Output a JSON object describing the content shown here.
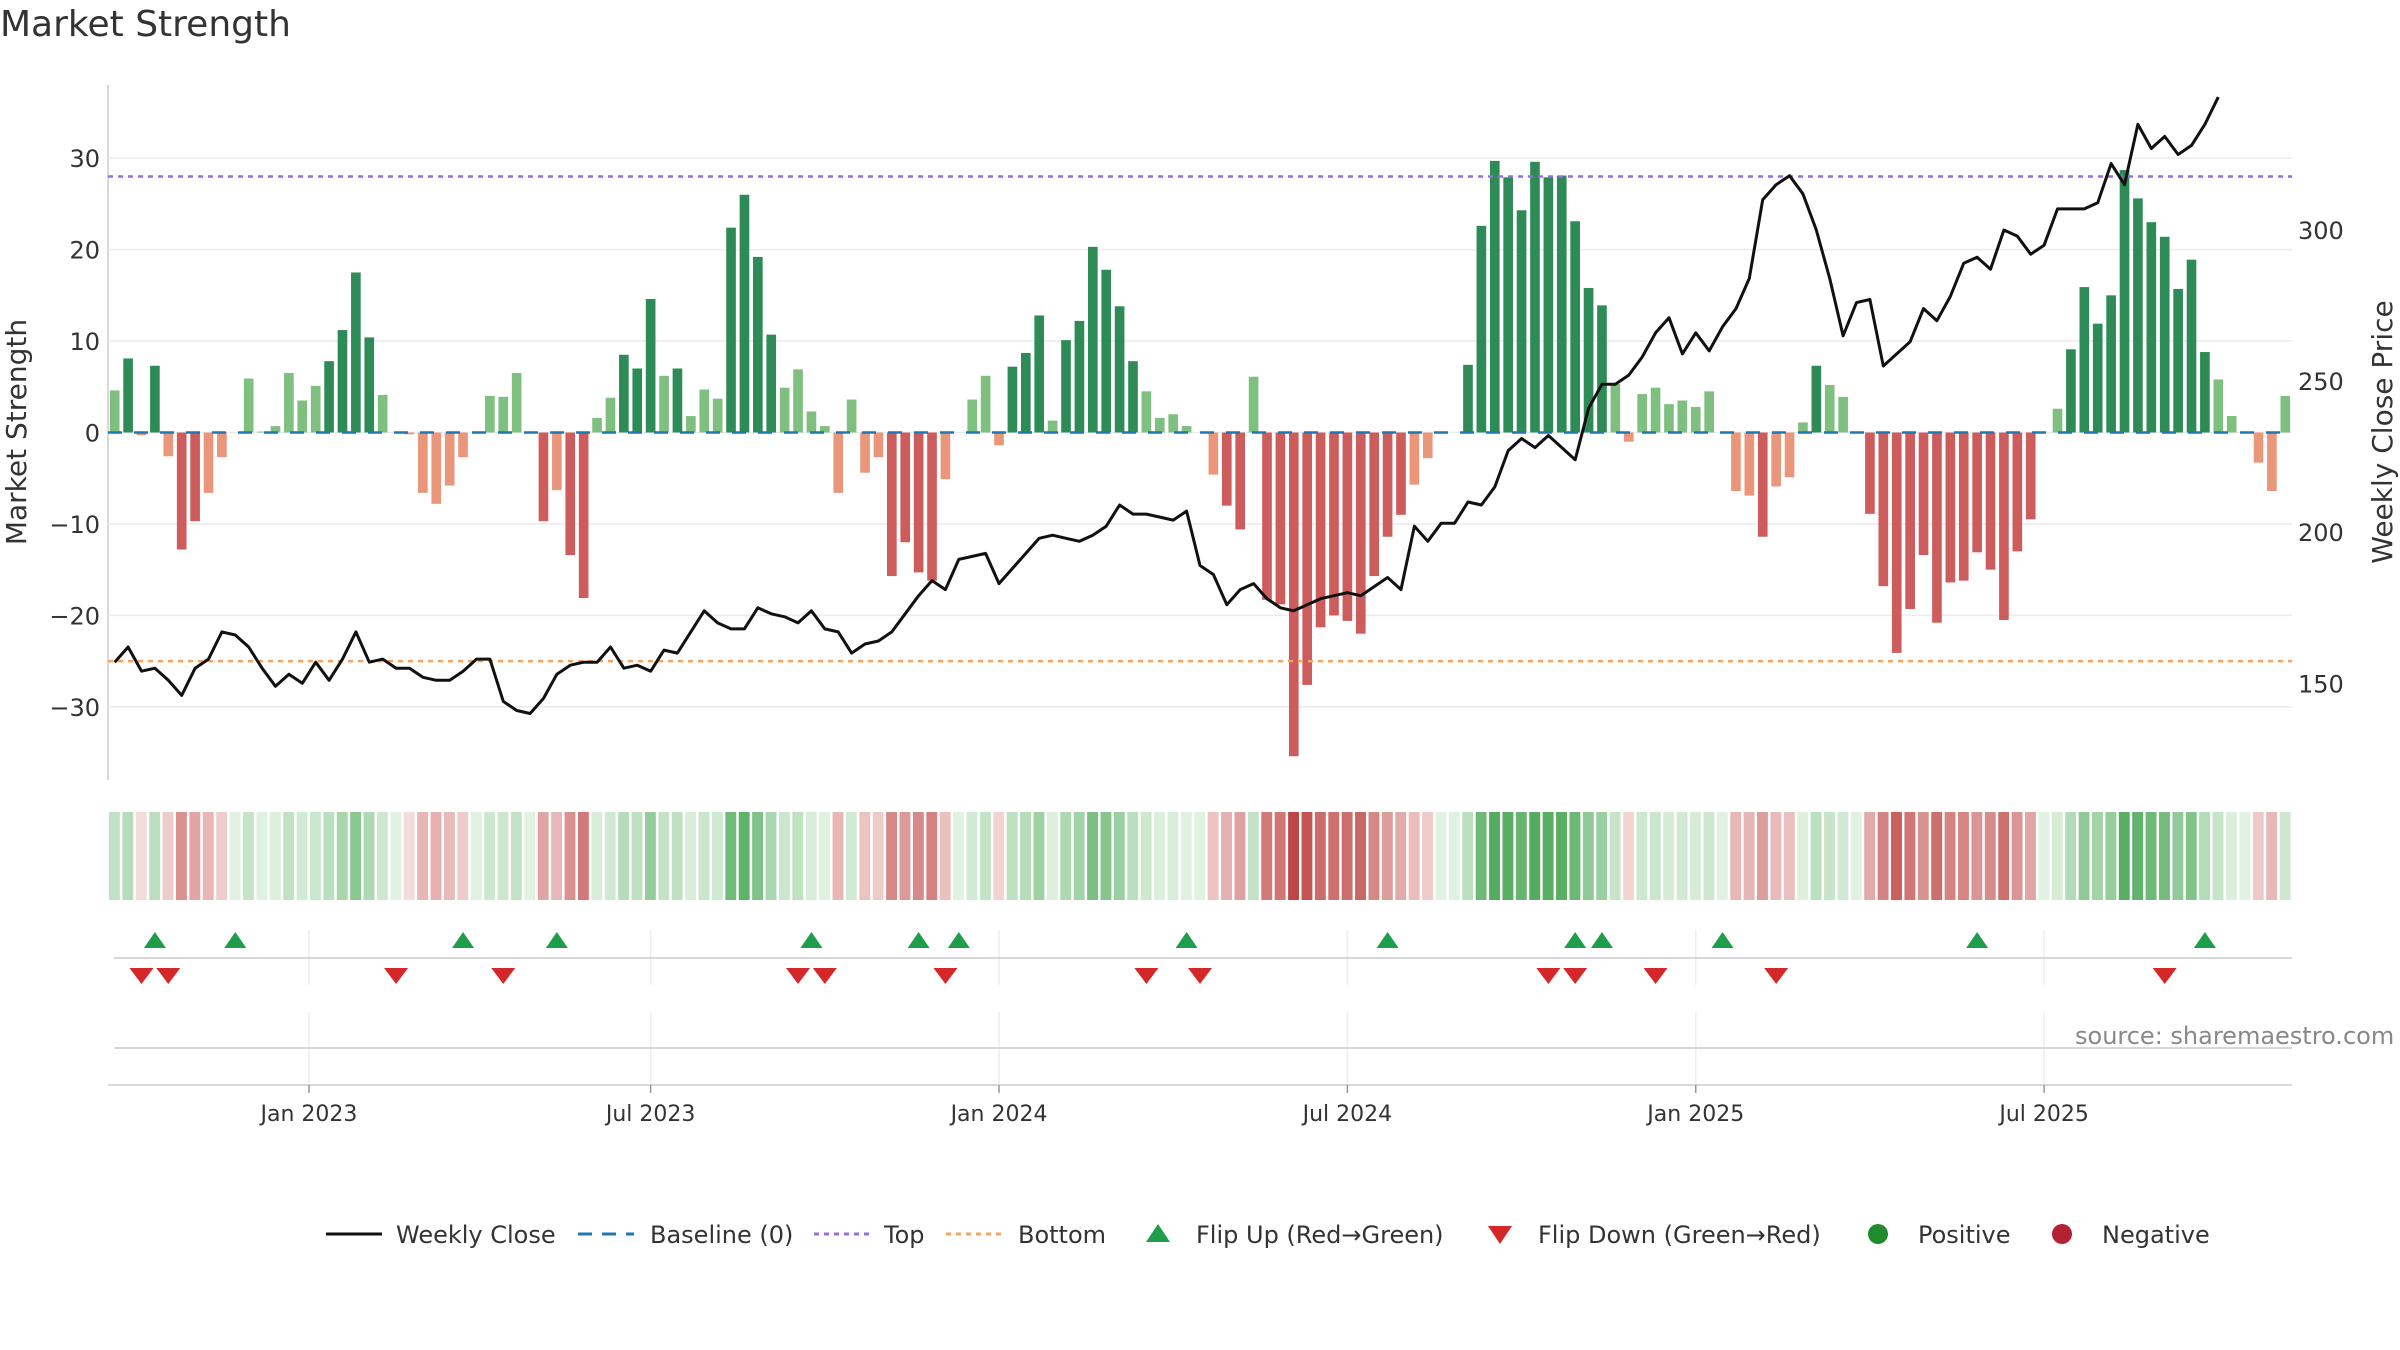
{
  "title": "Market Strength",
  "source": "source: sharemaestro.com",
  "colors": {
    "strong_green": "#2e8b57",
    "light_green": "#7fbf7f",
    "strong_red": "#cd5c5c",
    "light_red": "#e9967a",
    "close_line": "#111111",
    "top_line": "#9370db",
    "bottom_line": "#f4a460",
    "baseline": "#1f77b4",
    "flip_up": "#1e9e4a",
    "flip_down": "#d62728",
    "positive": "#1f8b2c",
    "negative": "#b22234"
  },
  "chart_data": {
    "type": "bar",
    "ylabel": "Market Strength",
    "y2label": "Weekly Close Price",
    "ylim": [
      -38,
      38
    ],
    "y2lim": [
      118,
      348
    ],
    "yticks": [
      30,
      20,
      10,
      0,
      -10,
      -20,
      -30
    ],
    "y2ticks": [
      300,
      250,
      200,
      150
    ],
    "top_level": 28,
    "bottom_level": -25,
    "x_tick_labels": [
      "Jan 2023",
      "Jul 2023",
      "Jan 2024",
      "Jul 2024",
      "Jan 2025",
      "Jul 2025"
    ],
    "x_tick_weeks": [
      14.5,
      40,
      66,
      92,
      118,
      144
    ],
    "strength": [
      4.6,
      8.1,
      -0.3,
      7.3,
      -2.6,
      -12.8,
      -9.7,
      -6.6,
      -2.7,
      0,
      5.9,
      0.1,
      0.7,
      6.5,
      3.5,
      5.1,
      7.8,
      11.2,
      17.5,
      10.4,
      4.1,
      0,
      -0.2,
      -6.6,
      -7.8,
      -5.8,
      -2.7,
      0,
      4.0,
      3.9,
      6.5,
      0,
      -9.7,
      -6.3,
      -13.4,
      -18.1,
      1.6,
      3.8,
      8.5,
      7.0,
      14.6,
      6.2,
      7.0,
      1.8,
      4.7,
      3.7,
      22.4,
      26.0,
      19.2,
      10.7,
      4.9,
      6.9,
      2.3,
      0.7,
      -6.6,
      3.6,
      -4.4,
      -2.7,
      -15.7,
      -12.0,
      -15.3,
      -16.2,
      -5.1,
      0,
      3.6,
      6.2,
      -1.4,
      7.2,
      8.7,
      12.8,
      1.3,
      10.1,
      12.2,
      20.3,
      17.8,
      13.8,
      7.8,
      4.5,
      1.6,
      2.0,
      0.7,
      0,
      -4.6,
      -8.0,
      -10.6,
      6.1,
      -18.3,
      -18.8,
      -35.4,
      -27.6,
      -21.3,
      -20.0,
      -20.6,
      -22.0,
      -15.7,
      -11.4,
      -9.0,
      -5.7,
      -2.8,
      0,
      0,
      7.4,
      22.6,
      29.7,
      27.9,
      24.3,
      29.6,
      27.9,
      28.1,
      23.1,
      15.8,
      13.9,
      5.3,
      -1.0,
      4.2,
      4.9,
      3.1,
      3.5,
      2.8,
      4.5,
      0,
      -6.4,
      -6.9,
      -11.4,
      -5.9,
      -4.9,
      1.1,
      7.3,
      5.2,
      3.9,
      0,
      -8.9,
      -16.8,
      -24.1,
      -19.3,
      -13.4,
      -20.8,
      -16.4,
      -16.2,
      -13.1,
      -15.0,
      -20.5,
      -13.0,
      -9.5,
      0,
      2.6,
      9.1,
      15.9,
      11.9,
      15.0,
      28.7,
      25.6,
      23.0,
      21.4,
      15.7,
      18.9,
      8.8,
      5.8,
      1.8,
      0,
      -3.3,
      -6.4,
      4.0
    ],
    "weekly_close": [
      157,
      162,
      154,
      155,
      151,
      146,
      155,
      158,
      167,
      166,
      162,
      155,
      149,
      153,
      150,
      157,
      151,
      158,
      167,
      157,
      158,
      155,
      155,
      152,
      151,
      151,
      154,
      158,
      158,
      144,
      141,
      140,
      145,
      153,
      156,
      157,
      157,
      162,
      155,
      156,
      154,
      161,
      160,
      167,
      174,
      170,
      168,
      168,
      175,
      173,
      172,
      170,
      174,
      168,
      167,
      160,
      163,
      164,
      167,
      173,
      179,
      184,
      181,
      191,
      192,
      193,
      183,
      188,
      193,
      198,
      199,
      198,
      197,
      199,
      202,
      209,
      206,
      206,
      205,
      204,
      207,
      189,
      186,
      176,
      181,
      183,
      178,
      175,
      174,
      176,
      178,
      179,
      180,
      179,
      182,
      185,
      181,
      202,
      197,
      203,
      203,
      210,
      209,
      215,
      227,
      231,
      228,
      232,
      228,
      224,
      241,
      249,
      249,
      252,
      258,
      266,
      271,
      259,
      266,
      260,
      268,
      274,
      284,
      310,
      315,
      318,
      312,
      300,
      284,
      265,
      276,
      277,
      255,
      259,
      263,
      274,
      270,
      278,
      289,
      291,
      287,
      300,
      298,
      292,
      295,
      307,
      307,
      307,
      309,
      322,
      315,
      335,
      327,
      331,
      325,
      328,
      335,
      344
    ],
    "heat_strip": [
      0.25,
      0.32,
      -0.01,
      0.29,
      -0.12,
      -0.5,
      -0.38,
      -0.26,
      -0.12,
      0.05,
      0.23,
      0.06,
      0.08,
      0.25,
      0.15,
      0.2,
      0.3,
      0.42,
      0.62,
      0.38,
      0.18,
      0.04,
      -0.02,
      -0.26,
      -0.3,
      -0.23,
      -0.12,
      0.05,
      0.17,
      0.17,
      0.25,
      0.04,
      -0.38,
      -0.25,
      -0.5,
      -0.66,
      0.1,
      0.16,
      0.33,
      0.27,
      0.55,
      0.24,
      0.27,
      0.1,
      0.2,
      0.16,
      0.78,
      0.9,
      0.68,
      0.4,
      0.2,
      0.27,
      0.11,
      0.06,
      -0.26,
      0.15,
      -0.18,
      -0.12,
      -0.57,
      -0.45,
      -0.56,
      -0.6,
      -0.2,
      0.04,
      0.15,
      0.24,
      -0.07,
      0.28,
      0.33,
      0.48,
      0.08,
      0.38,
      0.46,
      0.72,
      0.64,
      0.51,
      0.3,
      0.18,
      0.08,
      0.1,
      0.05,
      0.04,
      -0.18,
      -0.3,
      -0.4,
      0.24,
      -0.66,
      -0.68,
      -1.0,
      -0.9,
      -0.75,
      -0.72,
      -0.74,
      -0.78,
      -0.57,
      -0.43,
      -0.34,
      -0.22,
      -0.12,
      0.04,
      0.04,
      0.29,
      0.8,
      0.98,
      0.95,
      0.85,
      0.98,
      0.95,
      0.95,
      0.81,
      0.57,
      0.51,
      0.21,
      -0.06,
      0.17,
      0.2,
      0.13,
      0.15,
      0.12,
      0.18,
      0.04,
      -0.25,
      -0.27,
      -0.43,
      -0.23,
      -0.2,
      0.07,
      0.29,
      0.21,
      0.16,
      0.04,
      -0.34,
      -0.6,
      -0.82,
      -0.68,
      -0.5,
      -0.74,
      -0.59,
      -0.58,
      -0.48,
      -0.54,
      -0.72,
      -0.48,
      -0.36,
      0.04,
      0.12,
      0.35,
      0.57,
      0.44,
      0.54,
      0.95,
      0.88,
      0.8,
      0.76,
      0.57,
      0.67,
      0.34,
      0.23,
      0.09,
      0.04,
      -0.14,
      -0.25,
      0.17
    ],
    "flip_up_weeks": [
      3,
      9,
      26,
      33,
      52,
      60,
      63,
      80,
      95,
      109,
      111,
      120,
      139,
      156
    ],
    "flip_down_weeks": [
      2,
      4,
      21,
      29,
      51,
      53,
      62,
      77,
      81,
      107,
      109,
      115,
      124,
      153
    ]
  },
  "legend": {
    "weekly_close": "Weekly Close",
    "baseline": "Baseline (0)",
    "top": "Top",
    "bottom": "Bottom",
    "flip_up": "Flip Up (Red→Green)",
    "flip_down": "Flip Down (Green→Red)",
    "positive": "Positive",
    "negative": "Negative"
  }
}
